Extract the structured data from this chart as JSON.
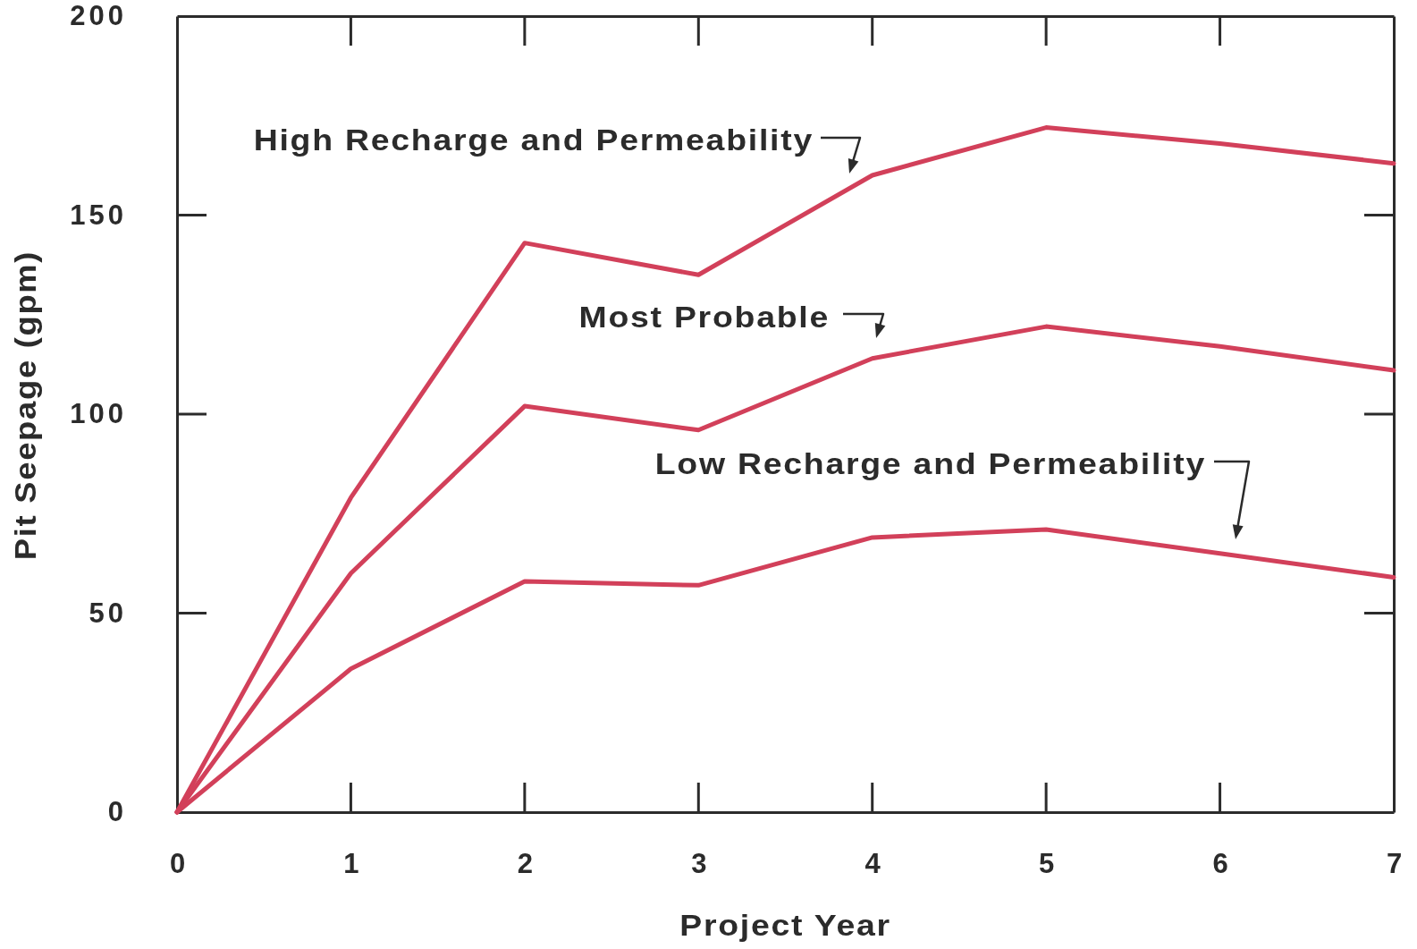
{
  "chart_data": {
    "type": "line",
    "xlabel": "Project Year",
    "ylabel": "Pit Seepage (gpm)",
    "x": [
      0,
      1,
      2,
      3,
      4,
      5,
      6,
      7
    ],
    "xlim": [
      0,
      7
    ],
    "xticks": [
      0,
      1,
      2,
      3,
      4,
      5,
      6,
      7
    ],
    "ylim": [
      0,
      200
    ],
    "yticks": [
      0,
      50,
      100,
      150,
      200
    ],
    "line_style": "solid",
    "marker": "none",
    "series": [
      {
        "name": "High Recharge and Permeability",
        "color": "#d2405a",
        "values": [
          0,
          79,
          143,
          135,
          160,
          172,
          168,
          163
        ]
      },
      {
        "name": "Most Probable",
        "color": "#d2405a",
        "values": [
          0,
          60,
          102,
          96,
          114,
          122,
          117,
          111
        ]
      },
      {
        "name": "Low Recharge and Permeability",
        "color": "#d2405a",
        "values": [
          0,
          36,
          58,
          57,
          69,
          71,
          65,
          59
        ]
      }
    ]
  }
}
